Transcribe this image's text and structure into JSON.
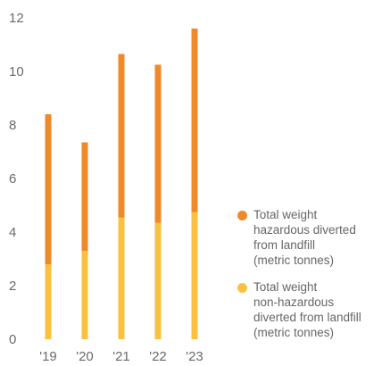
{
  "chart_data": {
    "type": "bar",
    "stacked": true,
    "categories": [
      "'19",
      "'20",
      "'21",
      "'22",
      "'23"
    ],
    "series": [
      {
        "name": "Total weight\nnon-hazardous\ndiverted from landfill\n(metric tonnes)",
        "color": "#f9c13f",
        "values": [
          2.8,
          3.3,
          4.55,
          4.35,
          4.75
        ]
      },
      {
        "name": "Total weight\nhazardous diverted\nfrom landfill\n(metric tonnes)",
        "color": "#ee8a2a",
        "values": [
          5.6,
          4.05,
          6.1,
          5.9,
          6.85
        ]
      }
    ],
    "y_ticks": [
      "0",
      "2",
      "4",
      "6",
      "8",
      "10",
      "12"
    ],
    "ylim": [
      0,
      12
    ],
    "grid": false,
    "legend_position": "right"
  }
}
